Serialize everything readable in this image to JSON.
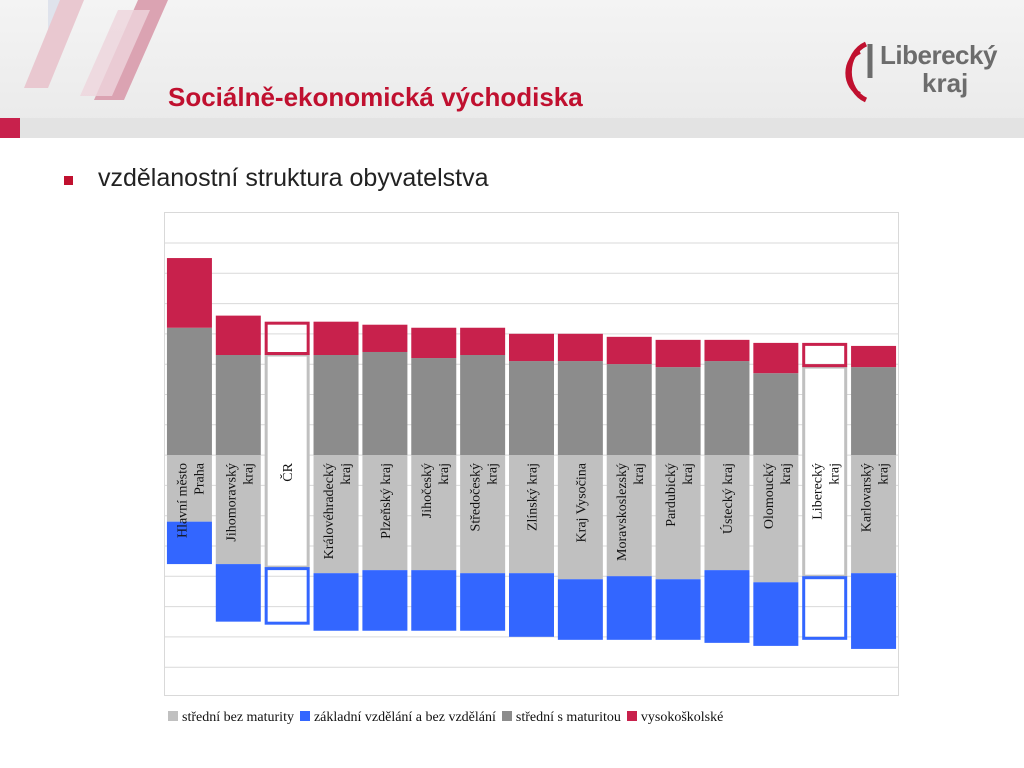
{
  "slide": {
    "title": "Sociálně-ekonomická východiska",
    "bullet_text": "vzdělanostní struktura obyvatelstva"
  },
  "logo": {
    "line1": "Liberecký",
    "line2": "kraj"
  },
  "colors": {
    "title": "#c0102f",
    "stredni_bez_maturity": "#c0c0c0",
    "zakladni": "#3366ff",
    "stredni_s_maturitou": "#8c8c8c",
    "vysokoskolske": "#c8214c"
  },
  "chart_data": {
    "type": "bar",
    "stacked": "diverging",
    "baseline_series": "střední bez maturity",
    "categories": [
      "Hlavní město Praha",
      "Jihomoravský kraj",
      "ČR",
      "Královéhradecký kraj",
      "Plzeňský kraj",
      "Jihočeský kraj",
      "Středočeský kraj",
      "Zlínský kraj",
      "Kraj Vysočina",
      "Moravskoslezský kraj",
      "Pardubický kraj",
      "Ústecký kraj",
      "Olomoucký kraj",
      "Liberecký kraj",
      "Karlovarský kraj"
    ],
    "highlighted_categories": [
      "ČR",
      "Liberecký kraj"
    ],
    "series": [
      {
        "name": "střední bez maturity",
        "color": "#c0c0c0",
        "values": [
          22,
          36,
          37,
          39,
          38,
          38,
          39,
          39,
          41,
          40,
          41,
          38,
          42,
          40,
          39
        ]
      },
      {
        "name": "základní vzdělání a bez vzdělání",
        "color": "#3366ff",
        "values": [
          14,
          19,
          19,
          19,
          20,
          20,
          19,
          21,
          20,
          21,
          20,
          24,
          21,
          21,
          25
        ]
      },
      {
        "name": "střední s maturitou",
        "color": "#8c8c8c",
        "values": [
          42,
          33,
          33,
          33,
          34,
          32,
          33,
          31,
          31,
          30,
          29,
          31,
          27,
          29,
          29
        ]
      },
      {
        "name": "vysokoškolské",
        "color": "#c8214c",
        "values": [
          23,
          13,
          11,
          11,
          9,
          10,
          9,
          9,
          9,
          9,
          9,
          7,
          10,
          8,
          7
        ]
      }
    ],
    "grid": true,
    "legend_position": "bottom"
  }
}
